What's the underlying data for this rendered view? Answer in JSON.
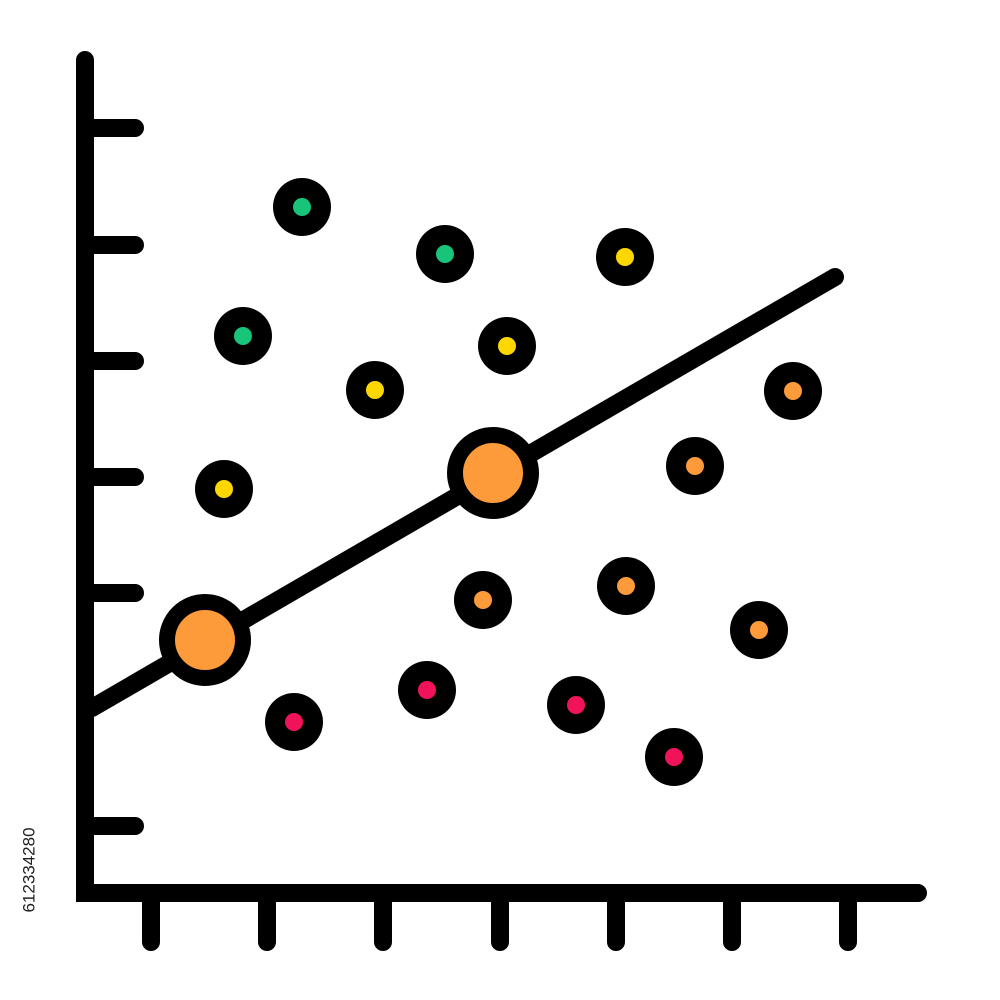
{
  "watermark": {
    "id": "612334280"
  }
}
